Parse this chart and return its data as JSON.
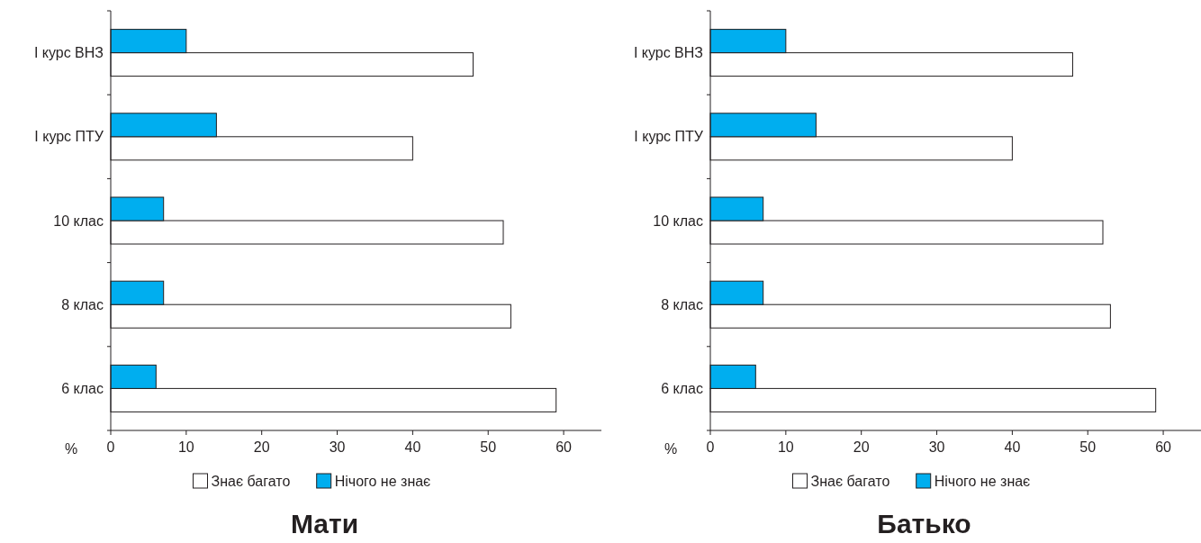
{
  "chart_data": [
    {
      "type": "bar",
      "orientation": "horizontal",
      "title": "Мати",
      "xlabel": "%",
      "categories": [
        "І курс ВНЗ",
        "І курс ПТУ",
        "10 клас",
        "8 клас",
        "6 клас"
      ],
      "series": [
        {
          "name": "Знає багато",
          "color": "#ffffff",
          "values": [
            48,
            40,
            52,
            53,
            59
          ]
        },
        {
          "name": "Нічого не знає",
          "color": "#00aeef",
          "values": [
            10,
            14,
            7,
            7,
            6
          ]
        }
      ],
      "xlim": [
        0,
        65
      ],
      "xticks": [
        0,
        10,
        20,
        30,
        40,
        50,
        60
      ],
      "legend": "bottom",
      "grid": false
    },
    {
      "type": "bar",
      "orientation": "horizontal",
      "title": "Батько",
      "xlabel": "%",
      "categories": [
        "І курс ВНЗ",
        "І курс ПТУ",
        "10 клас",
        "8 клас",
        "6 клас"
      ],
      "series": [
        {
          "name": "Знає багато",
          "color": "#ffffff",
          "values": [
            48,
            40,
            52,
            53,
            59
          ]
        },
        {
          "name": "Нічого не знає",
          "color": "#00aeef",
          "values": [
            10,
            14,
            7,
            7,
            6
          ]
        }
      ],
      "xlim": [
        0,
        65
      ],
      "xticks": [
        0,
        10,
        20,
        30,
        40,
        50,
        60
      ],
      "legend": "bottom",
      "grid": false
    }
  ]
}
